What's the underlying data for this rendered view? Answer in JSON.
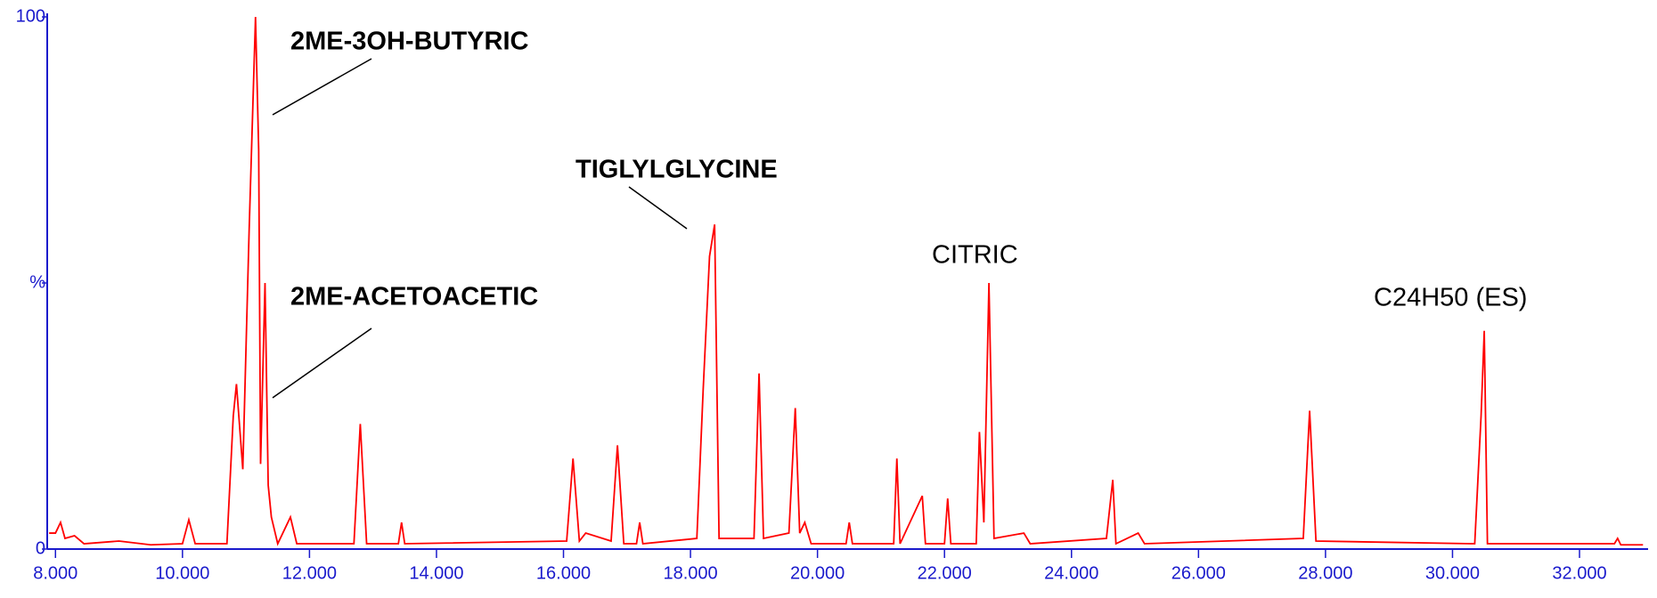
{
  "chart_data": {
    "type": "line",
    "color": "#ff0000",
    "x": [
      7.9,
      8.0,
      8.08,
      8.15,
      8.3,
      8.45,
      9.0,
      9.5,
      10.0,
      10.1,
      10.2,
      10.7,
      10.8,
      10.85,
      10.95,
      11.05,
      11.15,
      11.2,
      11.23,
      11.3,
      11.35,
      11.4,
      11.5,
      11.7,
      11.8,
      12.7,
      12.8,
      12.9,
      13.4,
      13.45,
      13.5,
      16.05,
      16.15,
      16.25,
      16.35,
      16.75,
      16.85,
      16.95,
      17.15,
      17.2,
      17.25,
      18.1,
      18.2,
      18.3,
      18.38,
      18.45,
      18.6,
      19.0,
      19.08,
      19.15,
      19.55,
      19.65,
      19.72,
      19.8,
      19.9,
      20.45,
      20.5,
      20.55,
      21.2,
      21.25,
      21.3,
      21.65,
      21.7,
      22.0,
      22.05,
      22.1,
      22.5,
      22.55,
      22.62,
      22.7,
      22.78,
      23.25,
      23.35,
      24.55,
      24.65,
      24.7,
      25.05,
      25.15,
      27.65,
      27.75,
      27.85,
      30.35,
      30.45,
      30.5,
      30.55,
      31.55,
      32.55,
      32.6,
      32.65,
      33.0
    ],
    "values": [
      3,
      3,
      5,
      2,
      2.5,
      1,
      1.5,
      0.8,
      1,
      5.5,
      1,
      1,
      25,
      31,
      15,
      60,
      100,
      75,
      16,
      50,
      12,
      6,
      1,
      6,
      1,
      1,
      23.5,
      1,
      1,
      5,
      1,
      1.5,
      17,
      1.5,
      3,
      1.5,
      19.5,
      1,
      1,
      5,
      1,
      2,
      30,
      55,
      61,
      2,
      2,
      2,
      33,
      2,
      3,
      26.5,
      3,
      5,
      1,
      1,
      5,
      1,
      1,
      17,
      1,
      10,
      1,
      1,
      9.5,
      1,
      1,
      22,
      5,
      50,
      2,
      3,
      1,
      2,
      13,
      1,
      3,
      1,
      2,
      26,
      1.5,
      1,
      25,
      41,
      1,
      1,
      1,
      2,
      0.8,
      0.8
    ],
    "xlim": [
      7.87,
      33.08
    ],
    "ylim": [
      0,
      100
    ],
    "xticks": [
      {
        "value": 8,
        "label": "8.000"
      },
      {
        "value": 10,
        "label": "10.000"
      },
      {
        "value": 12,
        "label": "12.000"
      },
      {
        "value": 14,
        "label": "14.000"
      },
      {
        "value": 16,
        "label": "16.000"
      },
      {
        "value": 18,
        "label": "18.000"
      },
      {
        "value": 20,
        "label": "20.000"
      },
      {
        "value": 22,
        "label": "22.000"
      },
      {
        "value": 24,
        "label": "24.000"
      },
      {
        "value": 26,
        "label": "26.000"
      },
      {
        "value": 28,
        "label": "28.000"
      },
      {
        "value": 30,
        "label": "30.000"
      },
      {
        "value": 32,
        "label": "32.000"
      }
    ],
    "yticks": [
      0,
      {
        "value": 50,
        "label": "%"
      },
      100
    ],
    "annotations": [
      {
        "text": "2ME-3OH-BUTYRIC",
        "bold": true
      },
      {
        "text": "2ME-ACETOACETIC",
        "bold": true
      },
      {
        "text": "TIGLYLGLYCINE",
        "bold": true
      },
      {
        "text": "CITRIC",
        "bold": false
      },
      {
        "text": "C24H50 (ES)",
        "bold": false
      }
    ]
  }
}
